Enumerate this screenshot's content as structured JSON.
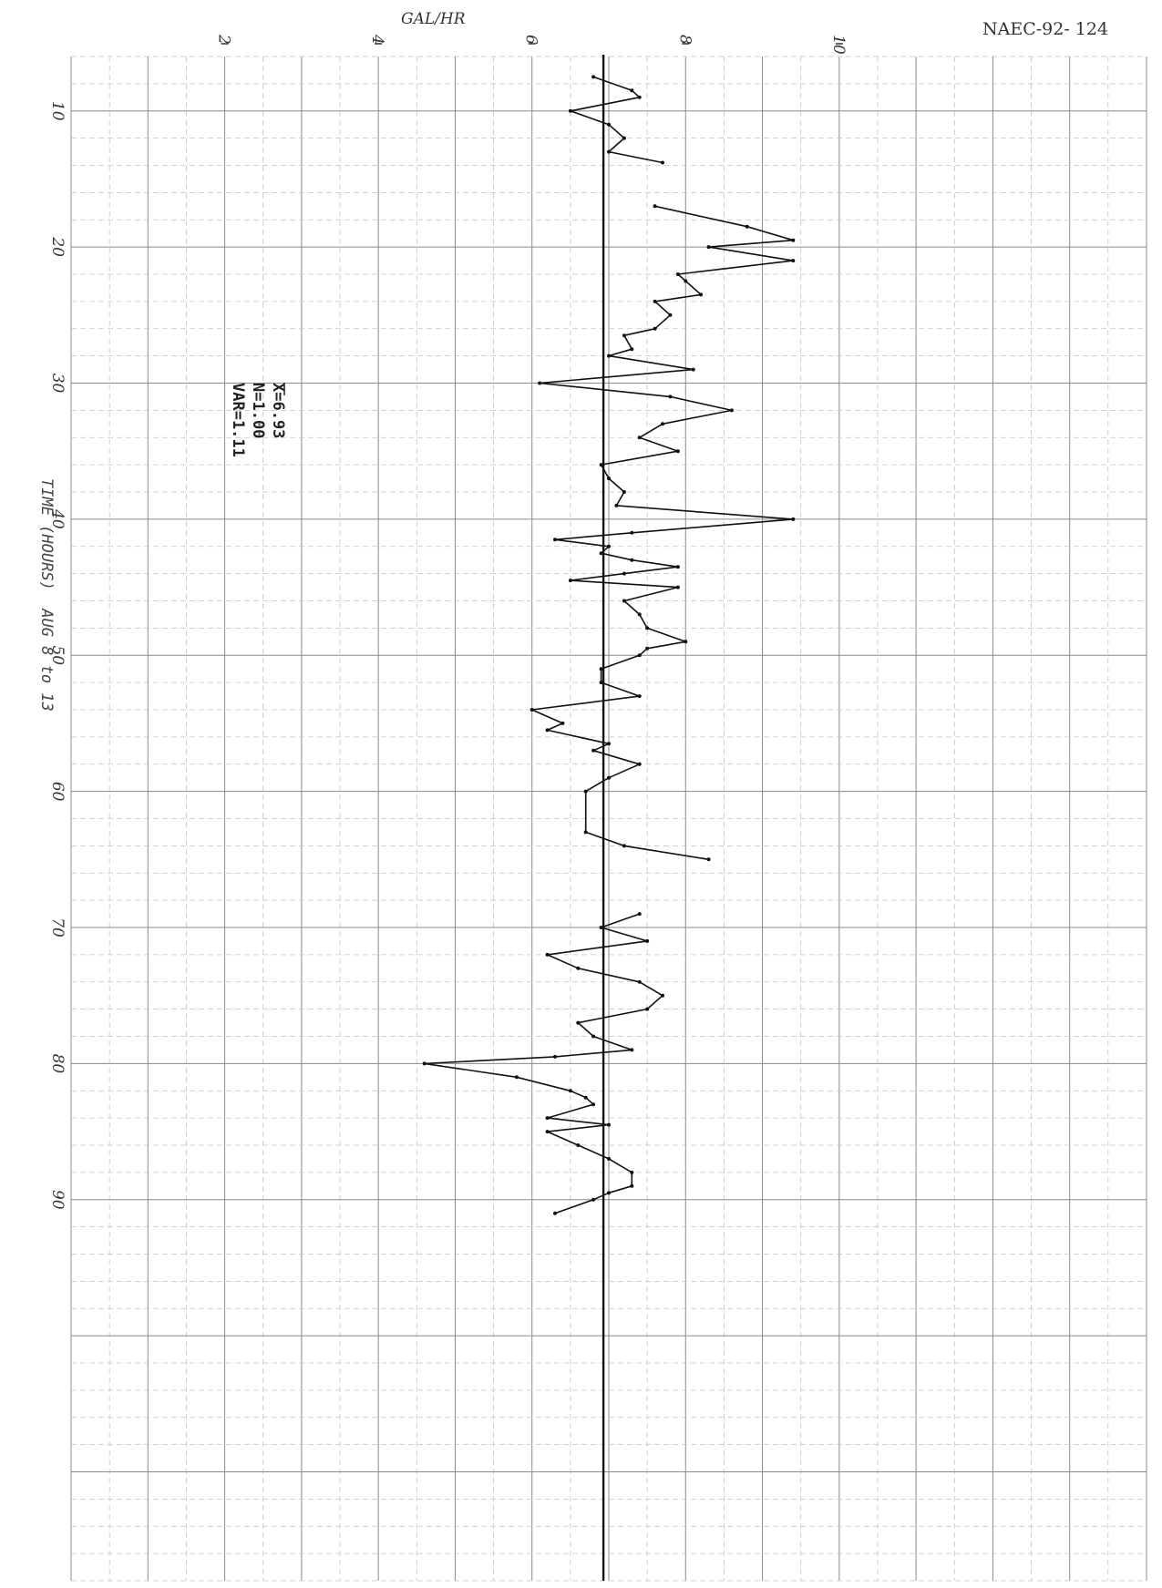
{
  "document_id": "NAEC-92- 124",
  "chart_data": {
    "type": "line",
    "ylabel": "GAL/HR",
    "xlabel": "TIME (HOURS)  AUG 8 to 13",
    "x_tick_labels": [
      "10",
      "20",
      "30",
      "40",
      "50",
      "60",
      "70",
      "80",
      "90"
    ],
    "y_tick_labels": [
      "2",
      "4",
      "6",
      "8",
      "10"
    ],
    "xlim": [
      6,
      118
    ],
    "ylim": [
      0,
      14
    ],
    "reference_line": 6.93,
    "grid": true,
    "stats": {
      "mean": "X=6.93",
      "n": "N=1.00",
      "var": "VAR=1.11"
    },
    "series": [
      {
        "segment": 1,
        "points": [
          [
            7.5,
            6.8
          ],
          [
            8.5,
            7.3
          ],
          [
            9,
            7.4
          ],
          [
            10,
            6.5
          ],
          [
            11,
            7.0
          ],
          [
            12,
            7.2
          ],
          [
            13,
            7.0
          ],
          [
            13.8,
            7.7
          ]
        ]
      },
      {
        "segment": 2,
        "points": [
          [
            17,
            7.6
          ],
          [
            18.5,
            8.8
          ],
          [
            19.5,
            9.4
          ],
          [
            20,
            8.3
          ],
          [
            21,
            9.4
          ],
          [
            22,
            7.9
          ],
          [
            22.5,
            8.0
          ],
          [
            23.5,
            8.2
          ],
          [
            24,
            7.6
          ],
          [
            25,
            7.8
          ],
          [
            26,
            7.6
          ],
          [
            26.5,
            7.2
          ],
          [
            27.5,
            7.3
          ],
          [
            28,
            7.0
          ],
          [
            29,
            8.1
          ],
          [
            30,
            6.1
          ],
          [
            31,
            7.8
          ],
          [
            32,
            8.6
          ],
          [
            33,
            7.7
          ],
          [
            34,
            7.4
          ],
          [
            35,
            7.9
          ],
          [
            36,
            6.9
          ],
          [
            37,
            7.0
          ],
          [
            38,
            7.2
          ],
          [
            39,
            7.1
          ],
          [
            40,
            9.4
          ],
          [
            41,
            7.3
          ],
          [
            41.5,
            6.3
          ],
          [
            42,
            7.0
          ],
          [
            42.5,
            6.9
          ],
          [
            43,
            7.3
          ],
          [
            43.5,
            7.9
          ],
          [
            44,
            7.2
          ],
          [
            44.5,
            6.5
          ],
          [
            45,
            7.9
          ],
          [
            46,
            7.2
          ],
          [
            47,
            7.4
          ],
          [
            48,
            7.5
          ],
          [
            49,
            8.0
          ],
          [
            49.5,
            7.5
          ],
          [
            50,
            7.4
          ],
          [
            51,
            6.9
          ],
          [
            52,
            6.9
          ],
          [
            53,
            7.4
          ],
          [
            54,
            6.0
          ],
          [
            55,
            6.4
          ],
          [
            55.5,
            6.2
          ],
          [
            56.5,
            7.0
          ],
          [
            57,
            6.8
          ],
          [
            58,
            7.4
          ],
          [
            59,
            7.0
          ],
          [
            60,
            6.7
          ],
          [
            63,
            6.7
          ],
          [
            64,
            7.2
          ],
          [
            65,
            8.3
          ]
        ]
      },
      {
        "segment": 3,
        "points": [
          [
            69,
            7.4
          ],
          [
            70,
            6.9
          ],
          [
            71,
            7.5
          ],
          [
            72,
            6.2
          ],
          [
            73,
            6.6
          ],
          [
            74,
            7.4
          ],
          [
            75,
            7.7
          ],
          [
            76,
            7.5
          ],
          [
            77,
            6.6
          ],
          [
            78,
            6.8
          ],
          [
            79,
            7.3
          ],
          [
            79.5,
            6.3
          ],
          [
            80,
            4.6
          ],
          [
            81,
            5.8
          ],
          [
            82,
            6.5
          ],
          [
            82.5,
            6.7
          ],
          [
            83,
            6.8
          ],
          [
            84,
            6.2
          ],
          [
            84.5,
            7.0
          ],
          [
            85,
            6.2
          ],
          [
            86,
            6.6
          ],
          [
            87,
            7.0
          ],
          [
            88,
            7.3
          ],
          [
            89,
            7.3
          ],
          [
            89.5,
            7.0
          ],
          [
            90,
            6.8
          ],
          [
            91,
            6.3
          ]
        ]
      }
    ]
  }
}
